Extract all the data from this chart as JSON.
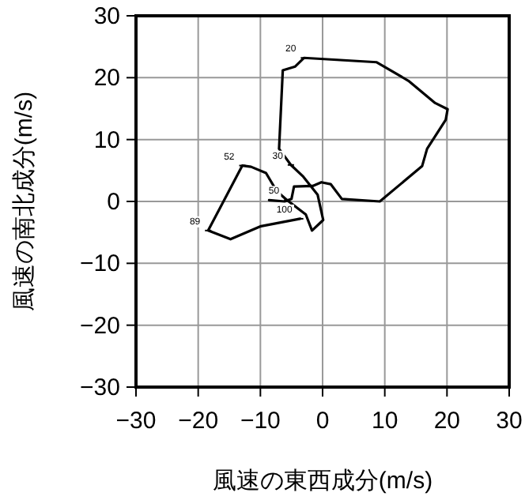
{
  "chart_data": {
    "type": "line",
    "xlabel": "風速の東西成分(m/s)",
    "ylabel": "風速の南北成分(m/s)",
    "xlim": [
      -30,
      30
    ],
    "ylim": [
      -30,
      30
    ],
    "xticks": [
      -30,
      -20,
      -10,
      0,
      10,
      20,
      30
    ],
    "yticks": [
      -30,
      -20,
      -10,
      0,
      10,
      20,
      30
    ],
    "grid": true,
    "series": [
      {
        "color": "#000000",
        "x": [
          -3.6,
          -9.9,
          -14.8,
          -18.4,
          -12.9,
          -11.5,
          -9.1,
          -7.4,
          -5.7,
          -2.7,
          -1.7,
          0.1,
          -0.8,
          -3.1,
          -5.1,
          -7.0,
          -6.4,
          -4.4,
          -3.0,
          8.7,
          13.8,
          18.1,
          20.1,
          19.8,
          16.8,
          16.0,
          9.2,
          3.1,
          1.3,
          -0.2,
          -1.6,
          -4.6,
          -5.0,
          -6.1,
          -8.6
        ],
        "values": [
          -2.8,
          -4.0,
          -6.1,
          -4.7,
          5.8,
          5.6,
          4.6,
          1.7,
          0.2,
          -2.1,
          -4.7,
          -3.0,
          1.1,
          4.0,
          5.9,
          8.5,
          21.2,
          21.8,
          23.2,
          22.5,
          19.5,
          15.9,
          14.9,
          13.2,
          8.5,
          5.7,
          0.0,
          0.4,
          2.8,
          3.1,
          2.5,
          2.4,
          0.4,
          0.0,
          0.2
        ]
      }
    ],
    "annotations": [
      {
        "text": "20",
        "x": -3.0,
        "y": 23.2
      },
      {
        "text": "30",
        "x": -5.1,
        "y": 5.9
      },
      {
        "text": "52",
        "x": -12.9,
        "y": 5.8
      },
      {
        "text": "89",
        "x": -18.4,
        "y": -4.7
      },
      {
        "text": "50",
        "x": -5.7,
        "y": 0.2
      },
      {
        "text": "100",
        "x": -3.6,
        "y": -2.8
      }
    ]
  }
}
